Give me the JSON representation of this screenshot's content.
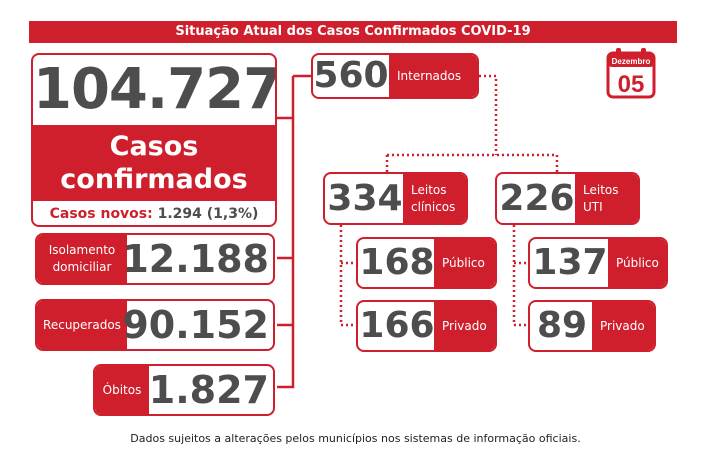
{
  "title": "Situação Atual dos Casos Confirmados COVID-19",
  "calendar": {
    "month": "Dezembro",
    "day": "05",
    "icon": "calendar-icon"
  },
  "confirmed": {
    "total": "104.727",
    "label_line1": "Casos",
    "label_line2": "confirmados",
    "new_label": "Casos novos:",
    "new_value": "1.294 (1,3%)"
  },
  "left_stats": {
    "isolation": {
      "label_line1": "Isolamento",
      "label_line2": "domiciliar",
      "value": "12.188"
    },
    "recovered": {
      "label": "Recuperados",
      "value": "90.152"
    },
    "deaths": {
      "label": "Óbitos",
      "value": "1.827"
    }
  },
  "hospitalized": {
    "value": "560",
    "label": "Internados"
  },
  "clinical": {
    "value": "334",
    "label_line1": "Leitos",
    "label_line2": "clínicos",
    "public": {
      "value": "168",
      "label": "Público"
    },
    "private": {
      "value": "166",
      "label": "Privado"
    }
  },
  "icu": {
    "value": "226",
    "label_line1": "Leitos",
    "label_line2": "UTI",
    "public": {
      "value": "137",
      "label": "Público"
    },
    "private": {
      "value": "89",
      "label": "Privado"
    }
  },
  "footer": "Dados sujeitos a alterações pelos municípios nos sistemas de informação oficiais.",
  "colors": {
    "accent": "#cf1f2d",
    "number": "#4d4d4d",
    "background": "#ffffff"
  }
}
